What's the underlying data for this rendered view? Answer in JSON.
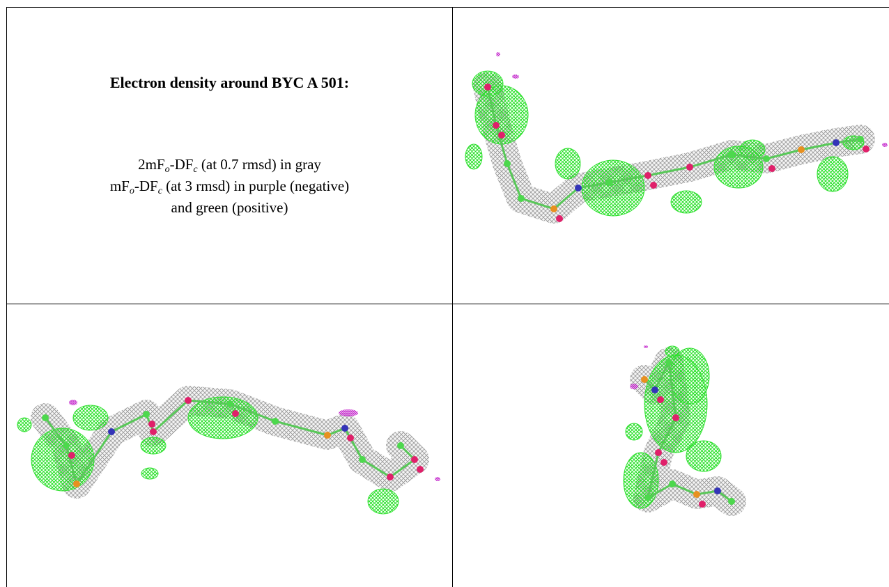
{
  "title": "Electron density around BYC A 501:",
  "legend": {
    "lines": [
      [
        "2mF",
        "o",
        "-DF",
        "c",
        " (at 0.7 rmsd) in gray"
      ],
      [
        "mF",
        "o",
        "-DF",
        "c",
        " (at 3 rmsd) in purple (negative)"
      ],
      [
        "and green (positive)"
      ]
    ]
  }
}
